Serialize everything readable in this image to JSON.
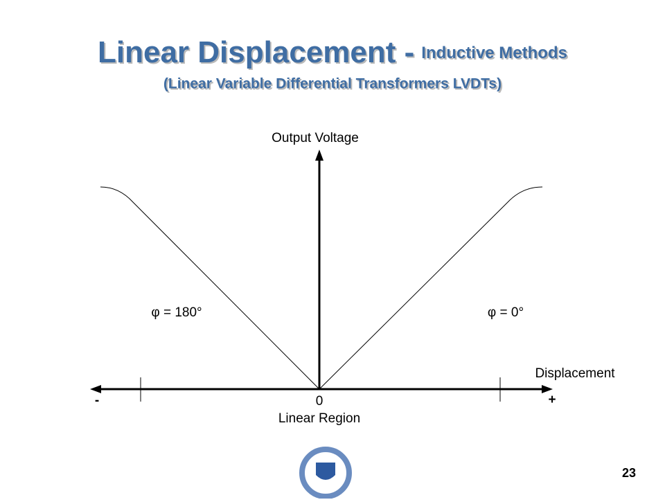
{
  "header": {
    "title_main": "Linear Displacement -",
    "title_sub": "Inductive Methods",
    "subtitle": "(Linear Variable Differential Transformers LVDTs)"
  },
  "diagram": {
    "y_axis_label": "Output Voltage",
    "x_axis_label": "Displacement",
    "minus_label": "-",
    "zero_label": "0",
    "plus_label": "+",
    "region_label": "Linear Region",
    "left_phase": "φ = 180°",
    "right_phase": "φ = 0°"
  },
  "footer": {
    "page_number": "23"
  }
}
